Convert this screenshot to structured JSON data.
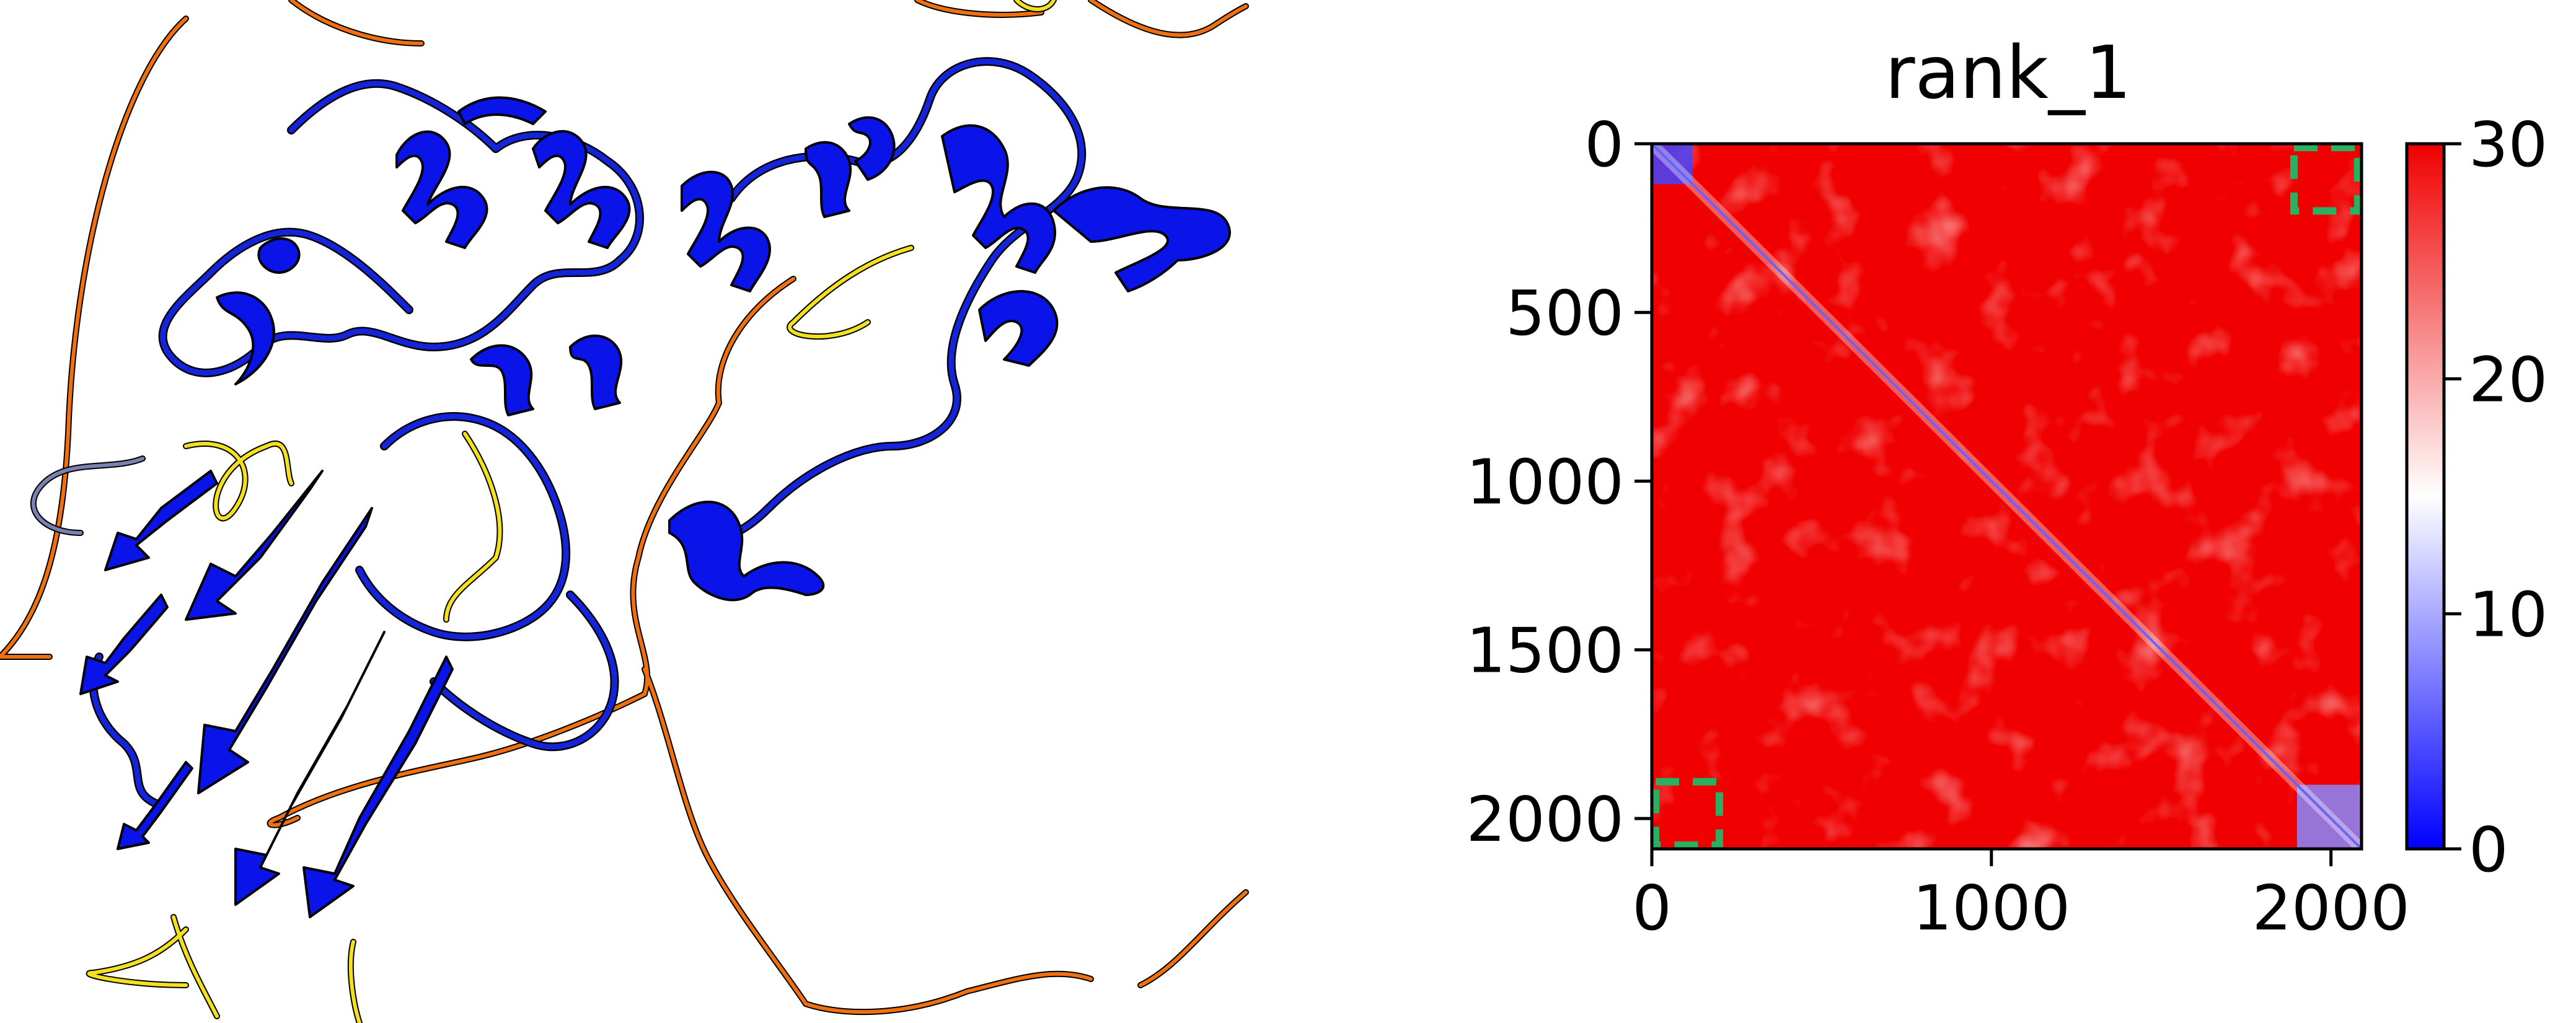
{
  "colors": {
    "helix_sheet": "#0a14e8",
    "coil_blue": "#1424d8",
    "coil_orange": "#f07010",
    "coil_yellow": "#f5e020",
    "coil_gray": "#7a80b0",
    "pae_high": "#f00000",
    "pae_mid": "#ffffff",
    "pae_low": "#0000ff",
    "highlight_box": "#2ab060"
  },
  "chart_data": {
    "type": "heatmap",
    "title": "rank_1",
    "xlabel": "",
    "ylabel": "",
    "xlim": [
      0,
      2090
    ],
    "ylim": [
      2090,
      0
    ],
    "x_ticks": [
      "0",
      "1000",
      "2000"
    ],
    "x_tick_values": [
      0,
      1000,
      2000
    ],
    "y_ticks": [
      "0",
      "500",
      "1000",
      "1500",
      "2000"
    ],
    "y_tick_values": [
      0,
      500,
      1000,
      1500,
      2000
    ],
    "colorbar": {
      "range": [
        0,
        30
      ],
      "ticks": [
        "0",
        "10",
        "20",
        "30"
      ],
      "tick_values": [
        0,
        10,
        20,
        30
      ],
      "colormap": "bwr"
    },
    "domains": [
      {
        "start": 0,
        "end": 120,
        "pae": 4
      },
      {
        "start": 1900,
        "end": 2090,
        "pae": 8
      }
    ],
    "diagonal_pae": 1,
    "background_pae": 28,
    "highlight_boxes": [
      {
        "x": [
          1880,
          2090
        ],
        "y": [
          0,
          210
        ]
      },
      {
        "x": [
          0,
          210
        ],
        "y": [
          1880,
          2090
        ]
      }
    ]
  }
}
